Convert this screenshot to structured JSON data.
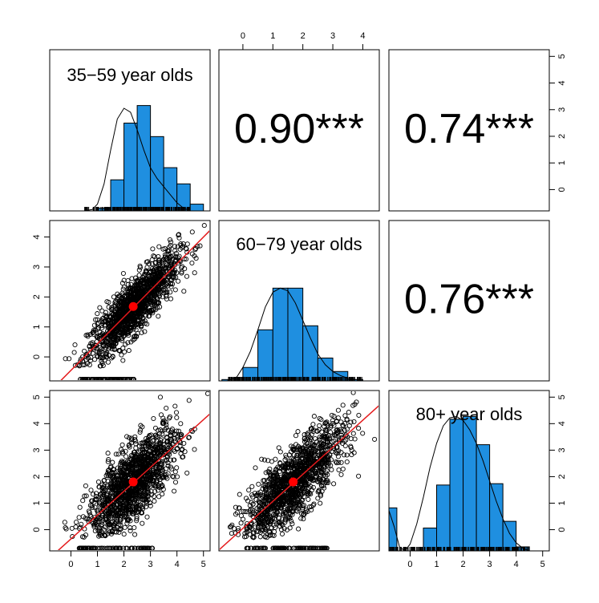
{
  "chart_data": {
    "type": "scatter-matrix",
    "variables": [
      "35−59 year olds",
      "60−79 year olds",
      "80+ year olds"
    ],
    "axis_ticks": {
      "v1": [
        0,
        1,
        2,
        3,
        4,
        5
      ],
      "v2": [
        0,
        1,
        2,
        3,
        4
      ],
      "v3": [
        0,
        1,
        2,
        3,
        4,
        5
      ]
    },
    "axis_ranges": {
      "v1": [
        -0.8,
        5.25
      ],
      "v2": [
        -0.8,
        4.55
      ],
      "v3": [
        -0.8,
        5.25
      ]
    },
    "correlations": [
      {
        "row": 1,
        "col": 2,
        "label": "0.90***",
        "value": 0.9
      },
      {
        "row": 1,
        "col": 3,
        "label": "0.74***",
        "value": 0.74
      },
      {
        "row": 2,
        "col": 3,
        "label": "0.76***",
        "value": 0.76
      }
    ],
    "histograms": [
      {
        "variable": "35−59 year olds",
        "bin_edges": [
          -0.5,
          0,
          0.5,
          1,
          1.5,
          2,
          2.5,
          3,
          3.5,
          4,
          4.5,
          5
        ],
        "counts": [
          0,
          0,
          0,
          0.02,
          0.23,
          0.65,
          0.78,
          0.55,
          0.32,
          0.2,
          0.05
        ],
        "density_curve": [
          [
            0.5,
            0
          ],
          [
            0.8,
            0.01
          ],
          [
            1,
            0.05
          ],
          [
            1.25,
            0.2
          ],
          [
            1.5,
            0.45
          ],
          [
            1.75,
            0.68
          ],
          [
            2,
            0.76
          ],
          [
            2.25,
            0.73
          ],
          [
            2.5,
            0.6
          ],
          [
            2.75,
            0.45
          ],
          [
            3,
            0.32
          ],
          [
            3.25,
            0.24
          ],
          [
            3.5,
            0.18
          ],
          [
            3.75,
            0.12
          ],
          [
            4,
            0.06
          ],
          [
            4.25,
            0.02
          ],
          [
            4.5,
            0
          ]
        ]
      },
      {
        "variable": "60−79 year olds",
        "bin_edges": [
          -0.7,
          -0.5,
          0,
          0.5,
          1,
          1.5,
          2,
          2.5,
          3,
          3.5,
          4
        ],
        "counts": [
          0.01,
          0,
          0.1,
          0.38,
          0.69,
          0.69,
          0.41,
          0.17,
          0.07,
          0.01
        ],
        "density_curve": [
          [
            -0.5,
            0
          ],
          [
            -0.2,
            0.03
          ],
          [
            0,
            0.1
          ],
          [
            0.25,
            0.22
          ],
          [
            0.5,
            0.38
          ],
          [
            0.75,
            0.55
          ],
          [
            1,
            0.66
          ],
          [
            1.25,
            0.69
          ],
          [
            1.5,
            0.67
          ],
          [
            1.75,
            0.58
          ],
          [
            2,
            0.45
          ],
          [
            2.25,
            0.32
          ],
          [
            2.5,
            0.2
          ],
          [
            2.75,
            0.12
          ],
          [
            3,
            0.07
          ],
          [
            3.25,
            0.04
          ],
          [
            3.5,
            0.02
          ],
          [
            4,
            0
          ]
        ]
      },
      {
        "variable": "80+ year olds",
        "bin_edges": [
          -0.8,
          -0.5,
          0,
          0.5,
          1,
          1.5,
          2,
          2.5,
          3,
          3.5,
          4,
          4.5
        ],
        "counts": [
          0.32,
          0,
          0,
          0.17,
          0.49,
          0.98,
          1.0,
          0.79,
          0.5,
          0.22,
          0.03
        ],
        "density_curve": [
          [
            -0.8,
            0.3
          ],
          [
            -0.6,
            0.18
          ],
          [
            -0.4,
            0.03
          ],
          [
            -0.2,
            0
          ],
          [
            0,
            0.05
          ],
          [
            0.25,
            0.2
          ],
          [
            0.5,
            0.4
          ],
          [
            0.75,
            0.62
          ],
          [
            1,
            0.8
          ],
          [
            1.25,
            0.93
          ],
          [
            1.5,
            0.99
          ],
          [
            1.75,
            1.0
          ],
          [
            2,
            0.97
          ],
          [
            2.25,
            0.9
          ],
          [
            2.5,
            0.8
          ],
          [
            2.75,
            0.67
          ],
          [
            3,
            0.52
          ],
          [
            3.25,
            0.37
          ],
          [
            3.5,
            0.24
          ],
          [
            3.75,
            0.13
          ],
          [
            4,
            0.06
          ],
          [
            4.25,
            0.02
          ],
          [
            4.5,
            0
          ]
        ]
      }
    ],
    "scatter_panels": [
      {
        "x": "35−59 year olds",
        "y": "60−79 year olds",
        "slope": 0.89,
        "intercept": -0.45,
        "center": [
          2.35,
          1.68
        ],
        "floor_y": -0.75,
        "floor_x_range": [
          0.3,
          2.4
        ],
        "spread": 0.45
      },
      {
        "x": "35−59 year olds",
        "y": "80+ year olds",
        "slope": 0.9,
        "intercept": -0.35,
        "center": [
          2.35,
          1.8
        ],
        "floor_y": -0.7,
        "floor_x_range": [
          0.3,
          3.1
        ],
        "spread": 0.7
      },
      {
        "x": "60−79 year olds",
        "y": "80+ year olds",
        "slope": 1.02,
        "intercept": 0.05,
        "center": [
          1.68,
          1.8
        ],
        "floor_y": -0.7,
        "floor_x_range": [
          0.1,
          2.9
        ],
        "spread": 0.65
      }
    ],
    "colors": {
      "bars": "#1f8fe0",
      "fit_line": "#e41a1c",
      "center_point": "#ff0000",
      "points": "#000000"
    }
  }
}
